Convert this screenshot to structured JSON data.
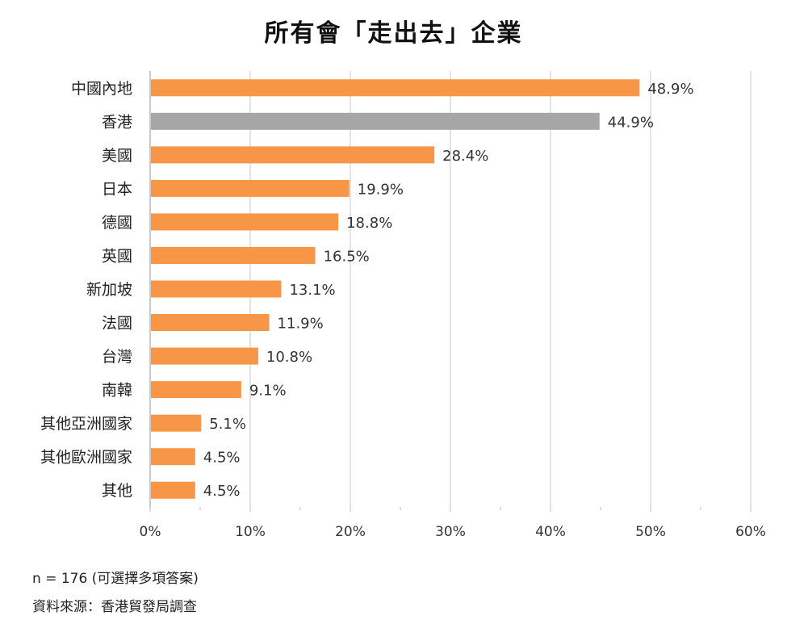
{
  "chart_data": {
    "type": "bar",
    "orientation": "horizontal",
    "title": "所有會「走出去」企業",
    "categories": [
      "中國內地",
      "香港",
      "美國",
      "日本",
      "德國",
      "英國",
      "新加坡",
      "法國",
      "台灣",
      "南韓",
      "其他亞洲國家",
      "其他歐洲國家",
      "其他"
    ],
    "values": [
      48.9,
      44.9,
      28.4,
      19.9,
      18.8,
      16.5,
      13.1,
      11.9,
      10.8,
      9.1,
      5.1,
      4.5,
      4.5
    ],
    "value_labels": [
      "48.9%",
      "44.9%",
      "28.4%",
      "19.9%",
      "18.8%",
      "16.5%",
      "13.1%",
      "11.9%",
      "10.8%",
      "9.1%",
      "5.1%",
      "4.5%",
      "4.5%"
    ],
    "highlight_category": "香港",
    "xlim": [
      0,
      60
    ],
    "x_ticks": [
      "0%",
      "10%",
      "20%",
      "30%",
      "40%",
      "50%",
      "60%"
    ],
    "grid": true,
    "colors": {
      "bar": "#F79646",
      "highlight": "#A6A6A6",
      "grid": "#D9D9D9",
      "axis": "#BFBFBF"
    }
  },
  "footnotes": {
    "sample": "n = 176 (可選擇多項答案)",
    "source": "資料來源：香港貿發局調查"
  }
}
